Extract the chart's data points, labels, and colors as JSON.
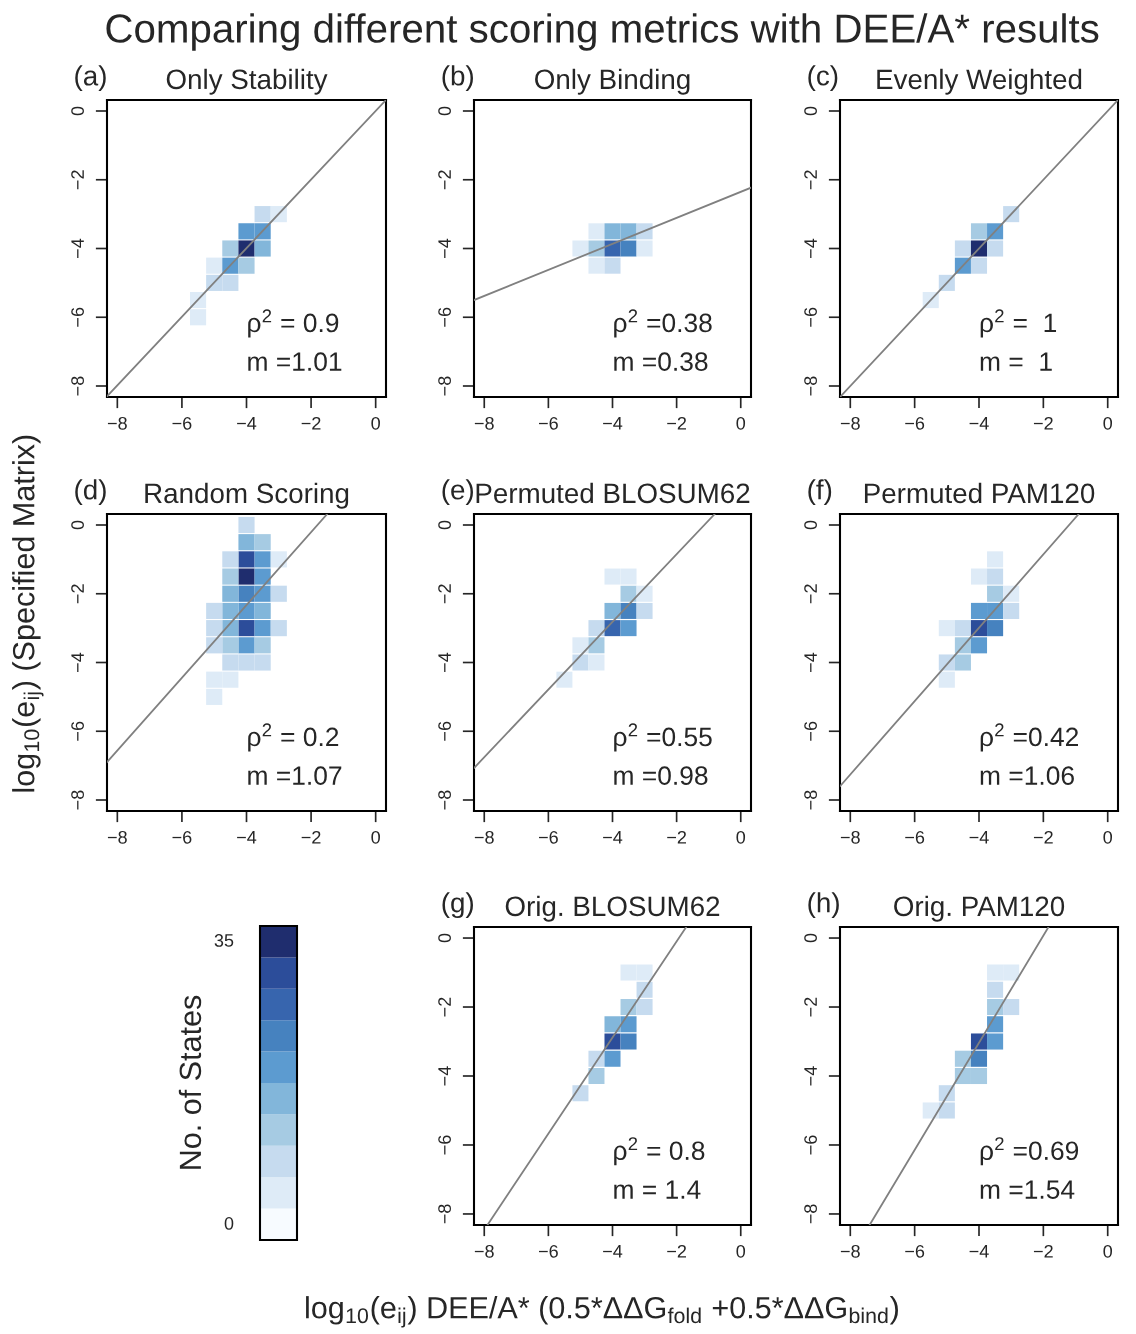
{
  "chart_data": [
    {
      "type": "scatter",
      "title": "Only Stability",
      "annotations": [
        "(a)",
        "ρ$^{2}$ = 0.9",
        "m =1.01"
      ],
      "xlim": [
        -8.32,
        0.32
      ],
      "ylim": [
        -8.32,
        0.32
      ],
      "xticks": [
        -8,
        -6,
        -4,
        -2,
        0
      ],
      "yticks": [
        -8,
        -6,
        -4,
        -2,
        0
      ],
      "grid": false,
      "series": [
        {
          "type": "scatter",
          "marker": "square",
          "x": [
            -5.5,
            -5.5,
            -5,
            -5,
            -4.5,
            -4.5,
            -4.5,
            -4,
            -4,
            -4,
            -3.5,
            -3.5,
            -3.5,
            -3
          ],
          "values": [
            -6,
            -5.5,
            -5,
            -4.5,
            -5,
            -4.5,
            -4,
            -4.5,
            -4,
            -3.5,
            -4,
            -3.5,
            -3,
            -3
          ],
          "colors": [
            "#deebf7",
            "#deebf7",
            "#c6dbef",
            "#deebf7",
            "#c6dbef",
            "#5c9bd0",
            "#a6cbe3",
            "#a6cbe3",
            "#1f2d6e",
            "#5c9bd0",
            "#82b6da",
            "#5c9bd0",
            "#c6dbef",
            "#deebf7"
          ]
        },
        {
          "type": "line",
          "color": "#808080",
          "x": [
            -8.32,
            0.32
          ],
          "values": [
            -8.3,
            0.32
          ]
        }
      ]
    },
    {
      "type": "scatter",
      "title": "Only Binding",
      "annotations": [
        "(b)",
        "ρ$^{2}$ =0.38",
        "m =0.38"
      ],
      "xlim": [
        -8.32,
        0.32
      ],
      "ylim": [
        -8.32,
        0.32
      ],
      "xticks": [
        -8,
        -6,
        -4,
        -2,
        0
      ],
      "yticks": [
        -8,
        -6,
        -4,
        -2,
        0
      ],
      "grid": false,
      "series": [
        {
          "type": "scatter",
          "marker": "square",
          "x": [
            -5,
            -4.5,
            -4.5,
            -4.5,
            -4,
            -4,
            -4,
            -3.5,
            -3.5,
            -3,
            -3
          ],
          "values": [
            -4,
            -4.5,
            -4,
            -3.5,
            -4.5,
            -4,
            -3.5,
            -4,
            -3.5,
            -4,
            -3.5
          ],
          "colors": [
            "#deebf7",
            "#deebf7",
            "#a6cbe3",
            "#deebf7",
            "#c6dbef",
            "#3765ae",
            "#82b6da",
            "#4682bf",
            "#82b6da",
            "#deebf7",
            "#c6dbef"
          ]
        },
        {
          "type": "line",
          "color": "#808080",
          "x": [
            -8.32,
            0.32
          ],
          "values": [
            -5.5,
            -2.23
          ]
        }
      ]
    },
    {
      "type": "scatter",
      "title": "Evenly Weighted",
      "annotations": [
        "(c)",
        "ρ$^{2}$ =  1",
        "m =  1"
      ],
      "xlim": [
        -8.32,
        0.32
      ],
      "ylim": [
        -8.32,
        0.32
      ],
      "xticks": [
        -8,
        -6,
        -4,
        -2,
        0
      ],
      "yticks": [
        -8,
        -6,
        -4,
        -2,
        0
      ],
      "grid": false,
      "series": [
        {
          "type": "scatter",
          "marker": "square",
          "x": [
            -5.5,
            -5,
            -4.5,
            -4.5,
            -4,
            -4,
            -4,
            -3.5,
            -3.5,
            -3
          ],
          "values": [
            -5.5,
            -5,
            -4.5,
            -4,
            -4.5,
            -4,
            -3.5,
            -4,
            -3.5,
            -3
          ],
          "colors": [
            "#deebf7",
            "#c6dbef",
            "#5c9bd0",
            "#c6dbef",
            "#c6dbef",
            "#1f2d6e",
            "#a6cbe3",
            "#c6dbef",
            "#5c9bd0",
            "#c6dbef"
          ]
        },
        {
          "type": "line",
          "color": "#808080",
          "x": [
            -8.32,
            0.32
          ],
          "values": [
            -8.32,
            0.32
          ]
        }
      ]
    },
    {
      "type": "scatter",
      "title": "Random Scoring",
      "annotations": [
        "(d)",
        "ρ$^{2}$ = 0.2",
        "m =1.07"
      ],
      "xlim": [
        -8.32,
        0.32
      ],
      "ylim": [
        -8.32,
        0.32
      ],
      "xticks": [
        -8,
        -6,
        -4,
        -2,
        0
      ],
      "yticks": [
        -8,
        -6,
        -4,
        -2,
        0
      ],
      "grid": false,
      "series": [
        {
          "type": "scatter",
          "marker": "square",
          "x": [
            -4,
            -4,
            -4,
            -4,
            -4,
            -4,
            -4,
            -4,
            -4,
            -3.5,
            -3.5,
            -3.5,
            -3.5,
            -3.5,
            -3.5,
            -3.5,
            -3.5,
            -4.5,
            -4.5,
            -4.5,
            -4.5,
            -4.5,
            -4.5,
            -4.5,
            -4.5,
            -5,
            -5,
            -5,
            -5,
            -5,
            -3,
            -3,
            -3
          ],
          "values": [
            0,
            -0.5,
            -1,
            -1.5,
            -2,
            -2.5,
            -3,
            -3.5,
            -4,
            -0.5,
            -1,
            -1.5,
            -2,
            -2.5,
            -3,
            -3.5,
            -4,
            -1,
            -1.5,
            -2,
            -2.5,
            -3,
            -3.5,
            -4,
            -4.5,
            -2.5,
            -3,
            -3.5,
            -4.5,
            -5,
            -1,
            -2,
            -3
          ],
          "colors": [
            "#c6dbef",
            "#82b6da",
            "#2c4d9a",
            "#1f2d6e",
            "#4682bf",
            "#5c9bd0",
            "#2c4d9a",
            "#5c9bd0",
            "#c6dbef",
            "#a6cbe3",
            "#5c9bd0",
            "#5c9bd0",
            "#5c9bd0",
            "#82b6da",
            "#5c9bd0",
            "#a6cbe3",
            "#c6dbef",
            "#c6dbef",
            "#a6cbe3",
            "#82b6da",
            "#82b6da",
            "#82b6da",
            "#a6cbe3",
            "#c6dbef",
            "#deebf7",
            "#c6dbef",
            "#c6dbef",
            "#c6dbef",
            "#deebf7",
            "#deebf7",
            "#deebf7",
            "#c6dbef",
            "#c6dbef"
          ]
        },
        {
          "type": "line",
          "color": "#808080",
          "x": [
            -8.32,
            -1.5
          ],
          "values": [
            -6.9,
            0.32
          ]
        }
      ]
    },
    {
      "type": "scatter",
      "title": "Permuted BLOSUM62",
      "annotations": [
        "(e)",
        "ρ$^{2}$ =0.55",
        "m =0.98"
      ],
      "xlim": [
        -8.32,
        0.32
      ],
      "ylim": [
        -8.32,
        0.32
      ],
      "xticks": [
        -8,
        -6,
        -4,
        -2,
        0
      ],
      "yticks": [
        -8,
        -6,
        -4,
        -2,
        0
      ],
      "grid": false,
      "series": [
        {
          "type": "scatter",
          "marker": "square",
          "x": [
            -5.5,
            -5,
            -5,
            -4.5,
            -4.5,
            -4.5,
            -4,
            -4,
            -4,
            -3.5,
            -3.5,
            -3.5,
            -3.5,
            -3,
            -3
          ],
          "values": [
            -4.5,
            -4,
            -3.5,
            -4,
            -3.5,
            -3,
            -3,
            -2.5,
            -1.5,
            -3,
            -2.5,
            -2,
            -1.5,
            -2.5,
            -2
          ],
          "colors": [
            "#deebf7",
            "#c6dbef",
            "#deebf7",
            "#deebf7",
            "#a6cbe3",
            "#c6dbef",
            "#3765ae",
            "#82b6da",
            "#deebf7",
            "#5c9bd0",
            "#4682bf",
            "#a6cbe3",
            "#deebf7",
            "#c6dbef",
            "#deebf7"
          ]
        },
        {
          "type": "line",
          "color": "#808080",
          "x": [
            -8.32,
            -0.81
          ],
          "values": [
            -7.07,
            0.32
          ]
        }
      ]
    },
    {
      "type": "scatter",
      "title": "Permuted PAM120",
      "annotations": [
        "(f)",
        "ρ$^{2}$ =0.42",
        "m =1.06"
      ],
      "xlim": [
        -8.32,
        0.32
      ],
      "ylim": [
        -8.32,
        0.32
      ],
      "xticks": [
        -8,
        -6,
        -4,
        -2,
        0
      ],
      "yticks": [
        -8,
        -6,
        -4,
        -2,
        0
      ],
      "grid": false,
      "series": [
        {
          "type": "scatter",
          "marker": "square",
          "x": [
            -5,
            -5,
            -5,
            -4.5,
            -4.5,
            -4.5,
            -4,
            -4,
            -4,
            -4,
            -3.5,
            -3.5,
            -3.5,
            -3.5,
            -3.5,
            -3,
            -3
          ],
          "values": [
            -4.5,
            -4,
            -3,
            -4,
            -3.5,
            -3,
            -3.5,
            -3,
            -2.5,
            -1.5,
            -3,
            -2.5,
            -2,
            -1.5,
            -1,
            -2.5,
            -2
          ],
          "colors": [
            "#deebf7",
            "#c6dbef",
            "#deebf7",
            "#a6cbe3",
            "#a6cbe3",
            "#c6dbef",
            "#5c9bd0",
            "#2c4d9a",
            "#5c9bd0",
            "#deebf7",
            "#4682bf",
            "#5c9bd0",
            "#a6cbe3",
            "#c6dbef",
            "#deebf7",
            "#c6dbef",
            "#deebf7"
          ]
        },
        {
          "type": "line",
          "color": "#808080",
          "x": [
            -8.32,
            -0.9
          ],
          "values": [
            -7.6,
            0.32
          ]
        }
      ]
    },
    {
      "type": "scatter",
      "title": "Orig. BLOSUM62",
      "annotations": [
        "(g)",
        "ρ$^{2}$ = 0.8",
        "m = 1.4"
      ],
      "xlim": [
        -8.32,
        0.32
      ],
      "ylim": [
        -8.32,
        0.32
      ],
      "xticks": [
        -8,
        -6,
        -4,
        -2,
        0
      ],
      "yticks": [
        -8,
        -6,
        -4,
        -2,
        0
      ],
      "grid": false,
      "series": [
        {
          "type": "scatter",
          "marker": "square",
          "x": [
            -5,
            -4.5,
            -4.5,
            -4,
            -4,
            -4,
            -3.5,
            -3.5,
            -3.5,
            -3.5,
            -3,
            -3,
            -3
          ],
          "values": [
            -4.5,
            -4,
            -3.5,
            -3.5,
            -3,
            -2.5,
            -3,
            -2.5,
            -2,
            -1,
            -2,
            -1.5,
            -1
          ],
          "colors": [
            "#c6dbef",
            "#a6cbe3",
            "#c6dbef",
            "#5c9bd0",
            "#2c4d9a",
            "#82b6da",
            "#4682bf",
            "#5c9bd0",
            "#a6cbe3",
            "#deebf7",
            "#c6dbef",
            "#c6dbef",
            "#deebf7"
          ]
        },
        {
          "type": "line",
          "color": "#808080",
          "x": [
            -7.9,
            -1.7
          ],
          "values": [
            -8.32,
            0.32
          ]
        }
      ]
    },
    {
      "type": "scatter",
      "title": "Orig. PAM120",
      "annotations": [
        "(h)",
        "ρ$^{2}$ =0.69",
        "m =1.54"
      ],
      "xlim": [
        -8.32,
        0.32
      ],
      "ylim": [
        -8.32,
        0.32
      ],
      "xticks": [
        -8,
        -6,
        -4,
        -2,
        0
      ],
      "yticks": [
        -8,
        -6,
        -4,
        -2,
        0
      ],
      "grid": false,
      "series": [
        {
          "type": "scatter",
          "marker": "square",
          "x": [
            -5.5,
            -5,
            -5,
            -4.5,
            -4.5,
            -4,
            -4,
            -4,
            -3.5,
            -3.5,
            -3.5,
            -3.5,
            -3.5,
            -3,
            -3
          ],
          "values": [
            -5,
            -5,
            -4.5,
            -4,
            -3.5,
            -4,
            -3.5,
            -3,
            -3,
            -2.5,
            -2,
            -1.5,
            -1,
            -2,
            -1
          ],
          "colors": [
            "#deebf7",
            "#c6dbef",
            "#c6dbef",
            "#a6cbe3",
            "#a6cbe3",
            "#a6cbe3",
            "#4682bf",
            "#2c4d9a",
            "#5c9bd0",
            "#5c9bd0",
            "#a6cbe3",
            "#c6dbef",
            "#deebf7",
            "#c6dbef",
            "#deebf7"
          ]
        },
        {
          "type": "line",
          "color": "#808080",
          "x": [
            -7.4,
            -1.84
          ],
          "values": [
            -8.32,
            0.32
          ]
        }
      ]
    },
    {
      "type": "other",
      "title": "Comparing different scoring metrics with DEE/A* results",
      "xlabel": "log$_{10}$(e$_{ij}$) DEE/A* (0.5*ΔΔG$_{fold}$ +0.5*ΔΔG$_{bind}$)",
      "ylabel": "log$_{10}$(e$_{ij}$) (Specified Matrix)",
      "annotations": [
        "No. of States",
        "0",
        "35"
      ],
      "colors": [
        "#f7fbff",
        "#deebf7",
        "#c6dbef",
        "#a6cbe3",
        "#82b6da",
        "#5c9bd0",
        "#4682bf",
        "#3765ae",
        "#2c4d9a",
        "#1f2d6e"
      ]
    }
  ]
}
